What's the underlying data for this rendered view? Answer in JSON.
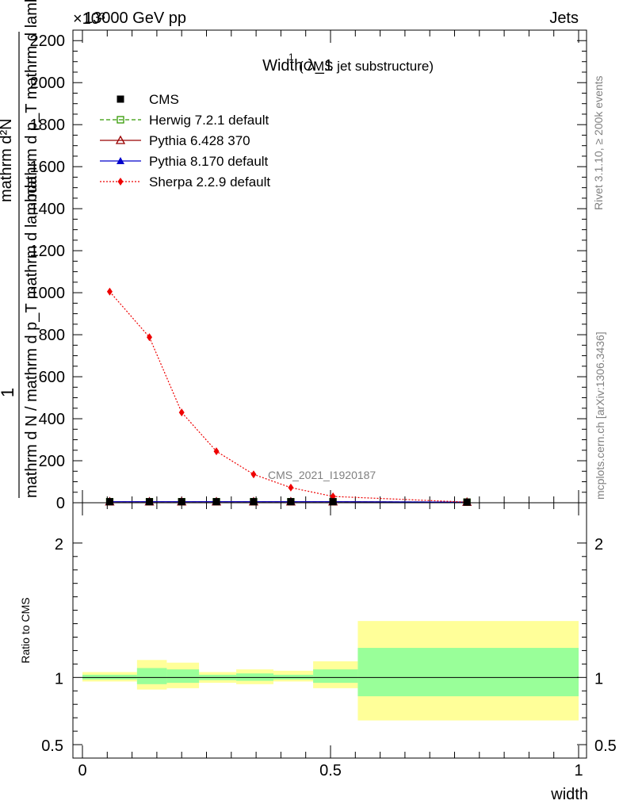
{
  "header": {
    "left": "13000 GeV pp",
    "right": "Jets",
    "exponent": "×10³"
  },
  "side_labels": {
    "rivet": "Rivet 3.1.10, ≥ 200k events",
    "mcplots": "mcplots.cern.ch [arXiv:1306.3436]"
  },
  "chart_data": {
    "type": "line",
    "title": "Width λ_1¹ (CMS jet substructure)",
    "title_main": "Width λ_1",
    "title_sup": "1",
    "title_sub": "(CMS jet substructure)",
    "watermark": "CMS_2021_I1920187",
    "ylabel_fraction_top": "1",
    "ylabel_fraction_bottom": "mathrm d N / mathrm d p_T mathrm d lambda",
    "ylabel_ratio_top": "mathrm d²N",
    "ylabel_ratio_bottom": "mathrm d p_T mathrm d lambda",
    "xlabel": "width",
    "xlim": [
      0,
      1
    ],
    "ylim": [
      0,
      2250
    ],
    "y_scale_note": "×10³",
    "y_ticks": [
      0,
      200,
      400,
      600,
      800,
      1000,
      1200,
      1400,
      1600,
      1800,
      2000,
      2200
    ],
    "y_tick_labels": [
      "0",
      "200",
      "400",
      "600",
      "800",
      "1000",
      "1200",
      "1400",
      "1600",
      "1800",
      "2000",
      "2200"
    ],
    "x_ticks": [
      0,
      0.5,
      1
    ],
    "x_tick_labels": [
      "0",
      "0.5",
      "1"
    ],
    "series": [
      {
        "name": "CMS",
        "color": "#000000",
        "x": [
          0.055,
          0.135,
          0.2,
          0.27,
          0.345,
          0.42,
          0.505,
          0.775
        ],
        "values": [
          5,
          5,
          5,
          5,
          5,
          5,
          5,
          3
        ]
      },
      {
        "name": "Herwig 7.2.1 default",
        "color": "#339900",
        "x": [
          0.055,
          0.135,
          0.2,
          0.27,
          0.345,
          0.42,
          0.505,
          0.775
        ],
        "values": [
          5,
          5,
          5,
          5,
          5,
          5,
          5,
          3
        ]
      },
      {
        "name": "Pythia 6.428 370",
        "color": "#990000",
        "x": [
          0.055,
          0.135,
          0.2,
          0.27,
          0.345,
          0.42,
          0.505,
          0.775
        ],
        "values": [
          5,
          5,
          5,
          5,
          5,
          5,
          5,
          3
        ]
      },
      {
        "name": "Pythia 8.170 default",
        "color": "#0000cc",
        "x": [
          0.055,
          0.135,
          0.2,
          0.27,
          0.345,
          0.42,
          0.505,
          0.775
        ],
        "values": [
          5,
          5,
          5,
          5,
          5,
          5,
          5,
          3
        ]
      },
      {
        "name": "Sherpa 2.2.9 default",
        "color": "#ee0000",
        "x": [
          0.055,
          0.135,
          0.2,
          0.27,
          0.345,
          0.42,
          0.505,
          0.775
        ],
        "values": [
          1005,
          788,
          430,
          245,
          135,
          72,
          30,
          3
        ]
      }
    ],
    "ratio": {
      "ylabel": "Ratio to CMS",
      "ylim": [
        0.4,
        2.3
      ],
      "y_ticks": [
        0.5,
        1,
        2
      ],
      "y_tick_labels": [
        "0.5",
        "1",
        "2"
      ],
      "bins": [
        {
          "lo": 0.0,
          "hi": 0.11,
          "green": [
            0.985,
            1.02
          ],
          "yellow": [
            0.97,
            1.04
          ]
        },
        {
          "lo": 0.11,
          "hi": 0.17,
          "green": [
            0.95,
            1.07
          ],
          "yellow": [
            0.91,
            1.13
          ]
        },
        {
          "lo": 0.17,
          "hi": 0.235,
          "green": [
            0.96,
            1.06
          ],
          "yellow": [
            0.92,
            1.11
          ]
        },
        {
          "lo": 0.235,
          "hi": 0.31,
          "green": [
            0.98,
            1.02
          ],
          "yellow": [
            0.96,
            1.04
          ]
        },
        {
          "lo": 0.31,
          "hi": 0.385,
          "green": [
            0.975,
            1.03
          ],
          "yellow": [
            0.95,
            1.06
          ]
        },
        {
          "lo": 0.385,
          "hi": 0.465,
          "green": [
            0.985,
            1.02
          ],
          "yellow": [
            0.97,
            1.05
          ]
        },
        {
          "lo": 0.465,
          "hi": 0.555,
          "green": [
            0.96,
            1.06
          ],
          "yellow": [
            0.92,
            1.12
          ]
        },
        {
          "lo": 0.555,
          "hi": 1.0,
          "green": [
            0.86,
            1.22
          ],
          "yellow": [
            0.68,
            1.42
          ]
        }
      ]
    }
  }
}
